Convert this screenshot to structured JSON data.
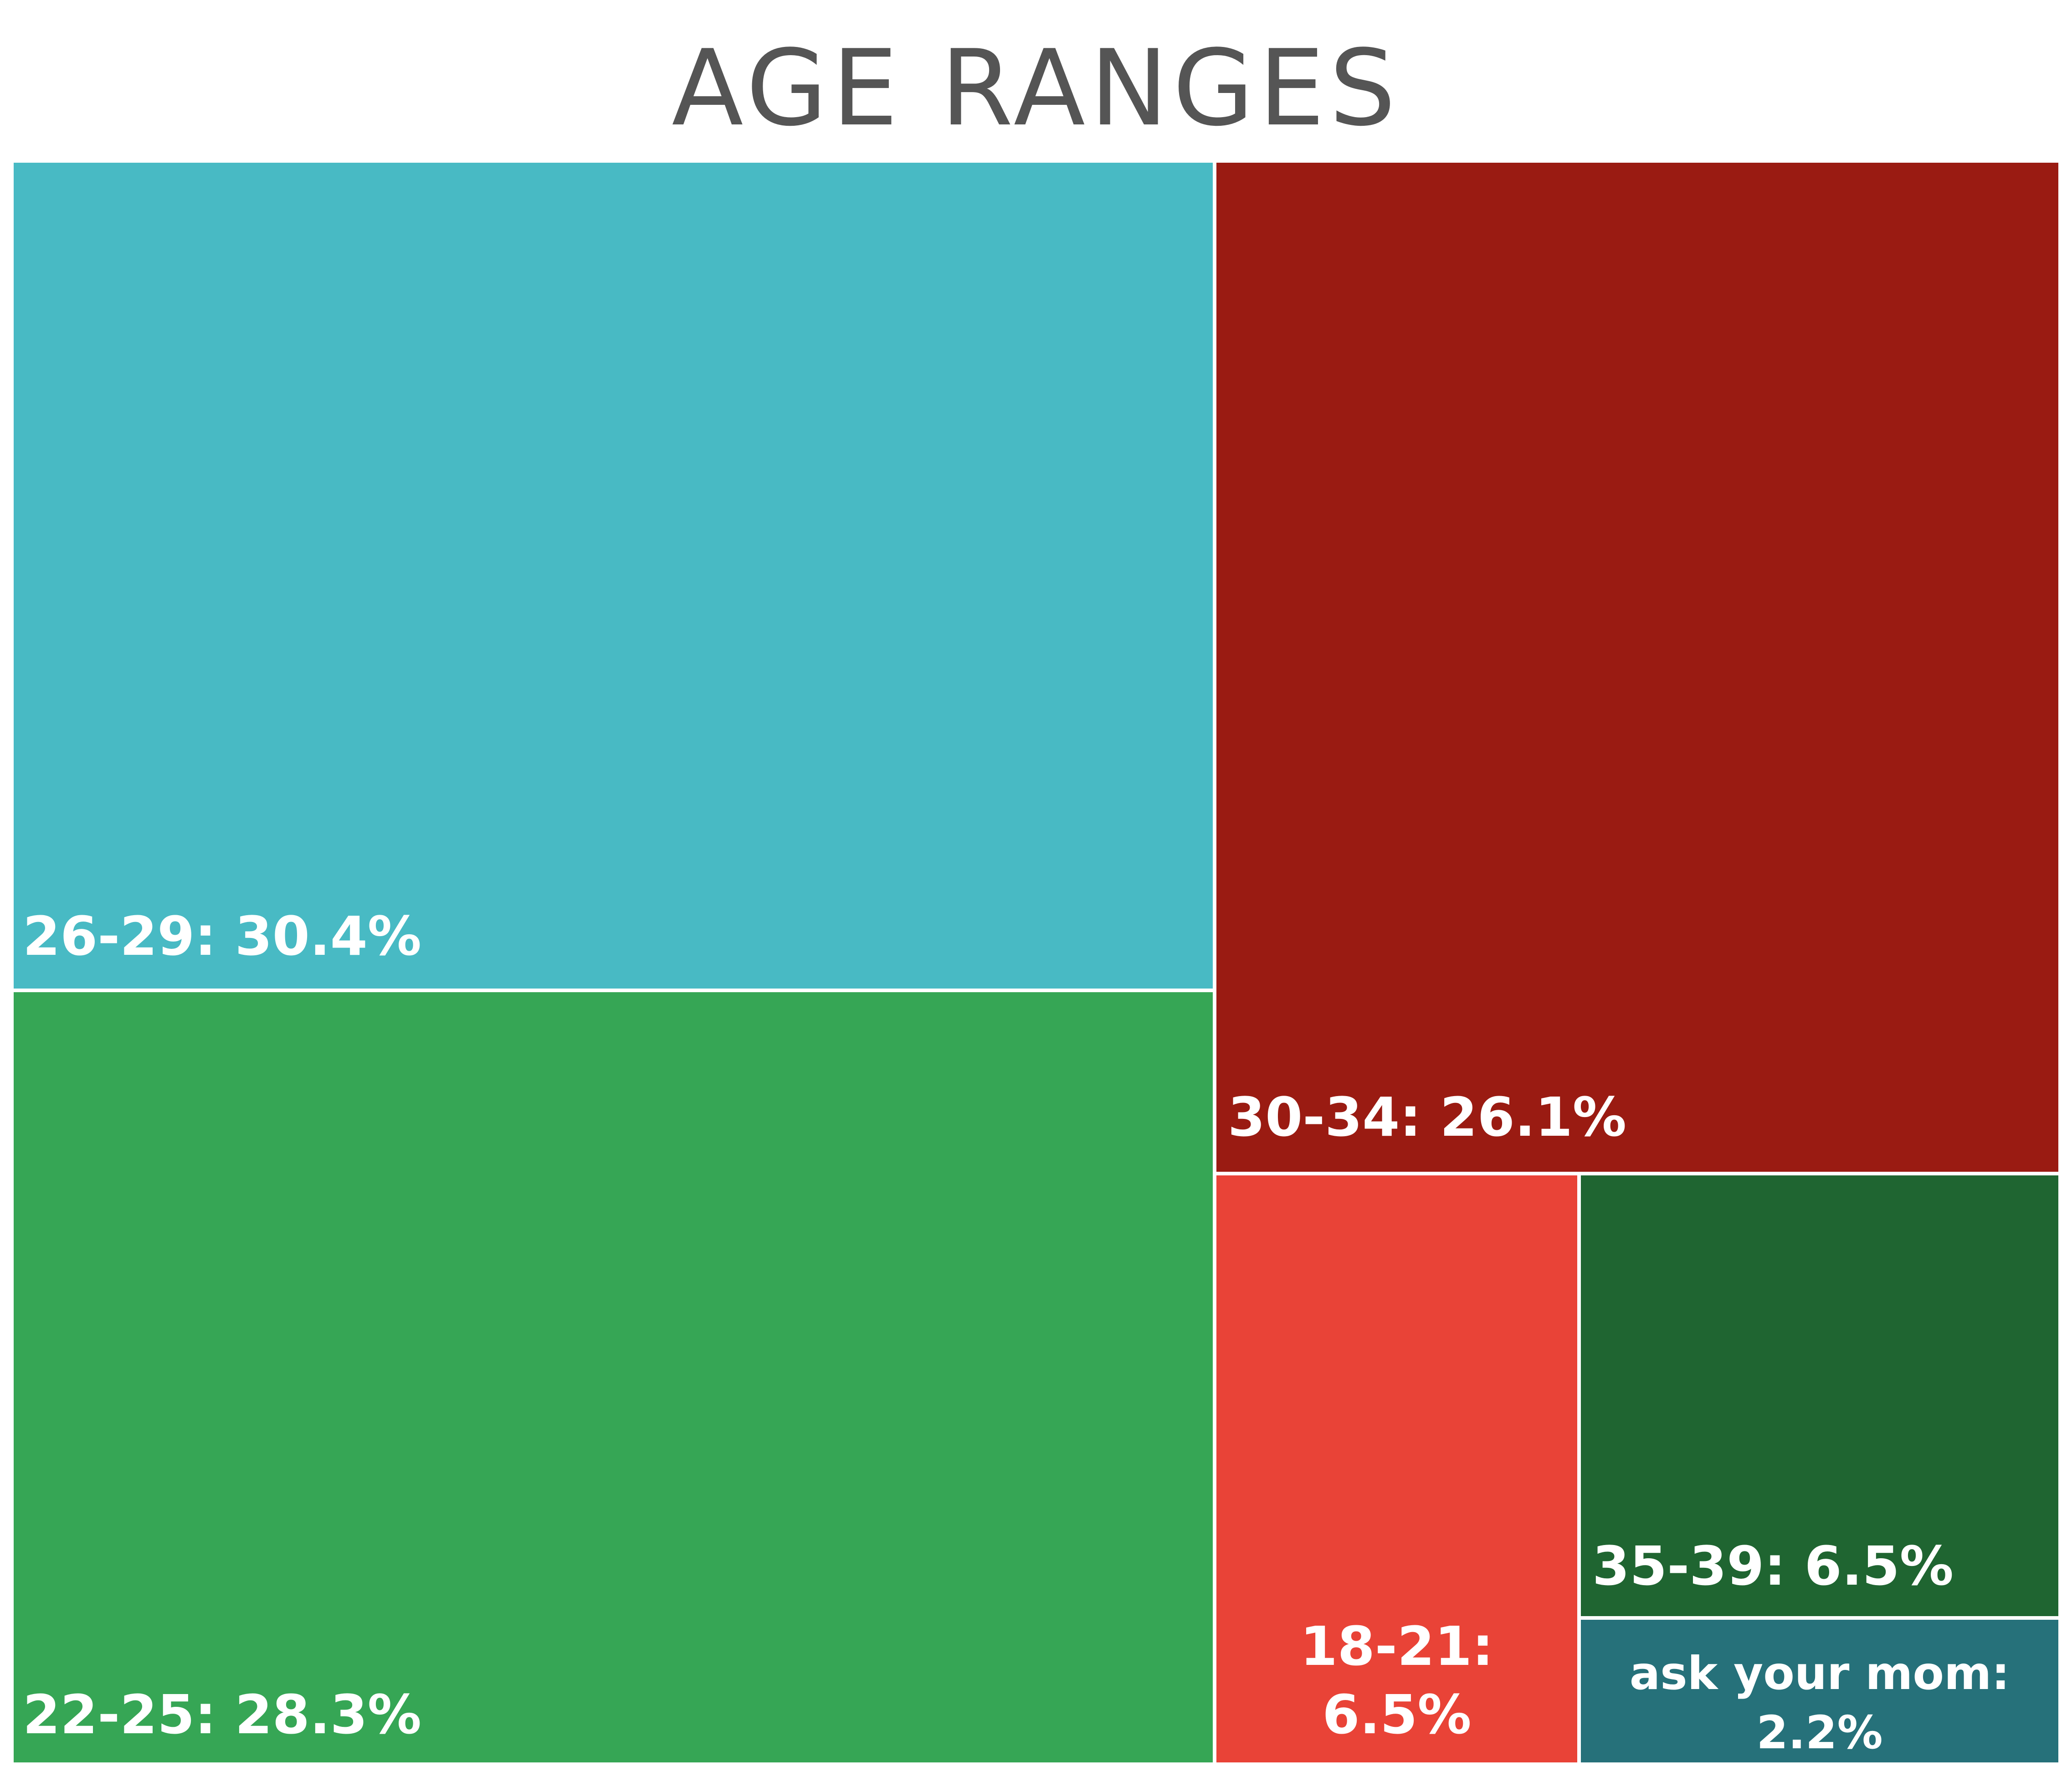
{
  "chart_data": {
    "type": "treemap",
    "title": "AGE RANGES",
    "items": [
      {
        "category": "26-29",
        "value": 30.4,
        "label": "26-29: 30.4%",
        "color": "#48BAC4"
      },
      {
        "category": "22-25",
        "value": 28.3,
        "label": "22-25: 28.3%",
        "color": "#36A655"
      },
      {
        "category": "30-34",
        "value": 26.1,
        "label": "30-34: 26.1%",
        "color": "#9A1B12"
      },
      {
        "category": "18-21",
        "value": 6.5,
        "label": "18-21:\n6.5%",
        "color": "#E94337"
      },
      {
        "category": "35-39",
        "value": 6.5,
        "label": "35-39: 6.5%",
        "color": "#1F6531"
      },
      {
        "category": "ask your mom",
        "value": 2.2,
        "label": "ask your mom:\n2.2%",
        "color": "#26717A"
      }
    ]
  }
}
